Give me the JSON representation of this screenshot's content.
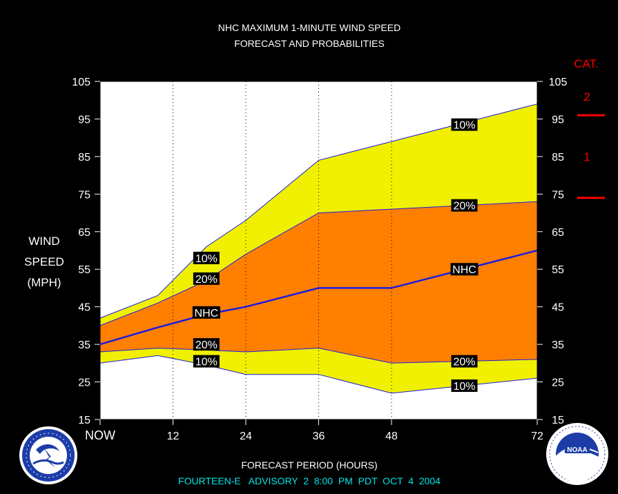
{
  "chart_data": {
    "type": "area",
    "title_line1": "NHC MAXIMUM 1-MINUTE WIND SPEED",
    "title_line2": "FORECAST AND PROBABILITIES",
    "ylabel_lines": [
      "WIND",
      "SPEED",
      "(MPH)"
    ],
    "xlabel": "FORECAST PERIOD (HOURS)",
    "advisory": "FOURTEEN-E   ADVISORY  2  8:00  PM  PDT  OCT  4  2004",
    "x_tick_labels": [
      "NOW",
      "12",
      "24",
      "36",
      "48",
      "72"
    ],
    "x_tick_values": [
      0,
      12,
      24,
      36,
      48,
      72
    ],
    "ylim": [
      15,
      105
    ],
    "xlim": [
      0,
      72
    ],
    "y_ticks": [
      15,
      25,
      35,
      45,
      55,
      65,
      75,
      85,
      95,
      105
    ],
    "dotted_gridlines_x": [
      12,
      24,
      36,
      48
    ],
    "colors": {
      "outer_band": "#f0f000",
      "inner_band": "#ff7f00",
      "nhc_line": "#1a1ae6",
      "plot_bg": "#ffffff",
      "category": "#ff0000",
      "advisory": "#00e5e5"
    },
    "x": [
      0,
      9.5,
      17.5,
      24,
      36,
      48,
      60,
      72
    ],
    "series": [
      {
        "name": "10%",
        "values": [
          42,
          48,
          61,
          68,
          84,
          89,
          94,
          99
        ]
      },
      {
        "name": "20%",
        "values": [
          40,
          46,
          52,
          59,
          70,
          71,
          72,
          73
        ]
      },
      {
        "name": "NHC",
        "values": [
          35,
          39.5,
          43,
          45,
          50,
          50,
          55,
          60
        ]
      },
      {
        "name": "20%",
        "values": [
          33,
          34,
          33.5,
          33,
          34,
          30,
          30.5,
          31
        ]
      },
      {
        "name": "10%",
        "values": [
          30,
          32,
          29.5,
          27,
          27,
          22,
          24,
          26
        ]
      }
    ],
    "annotations": [
      {
        "text": "10%",
        "x": 17.5,
        "y": 58
      },
      {
        "text": "20%",
        "x": 17.5,
        "y": 52.5
      },
      {
        "text": "NHC",
        "x": 17.5,
        "y": 43.5
      },
      {
        "text": "20%",
        "x": 17.5,
        "y": 35
      },
      {
        "text": "10%",
        "x": 17.5,
        "y": 30.5
      },
      {
        "text": "10%",
        "x": 60,
        "y": 93.5
      },
      {
        "text": "20%",
        "x": 60,
        "y": 72
      },
      {
        "text": "NHC",
        "x": 60,
        "y": 55
      },
      {
        "text": "20%",
        "x": 60,
        "y": 30.5
      },
      {
        "text": "10%",
        "x": 60,
        "y": 24
      }
    ],
    "category": {
      "header": "CAT.",
      "labels": [
        {
          "text": "2",
          "y": 101
        },
        {
          "text": "1",
          "y": 85
        }
      ],
      "thresholds": [
        96,
        74
      ]
    }
  }
}
